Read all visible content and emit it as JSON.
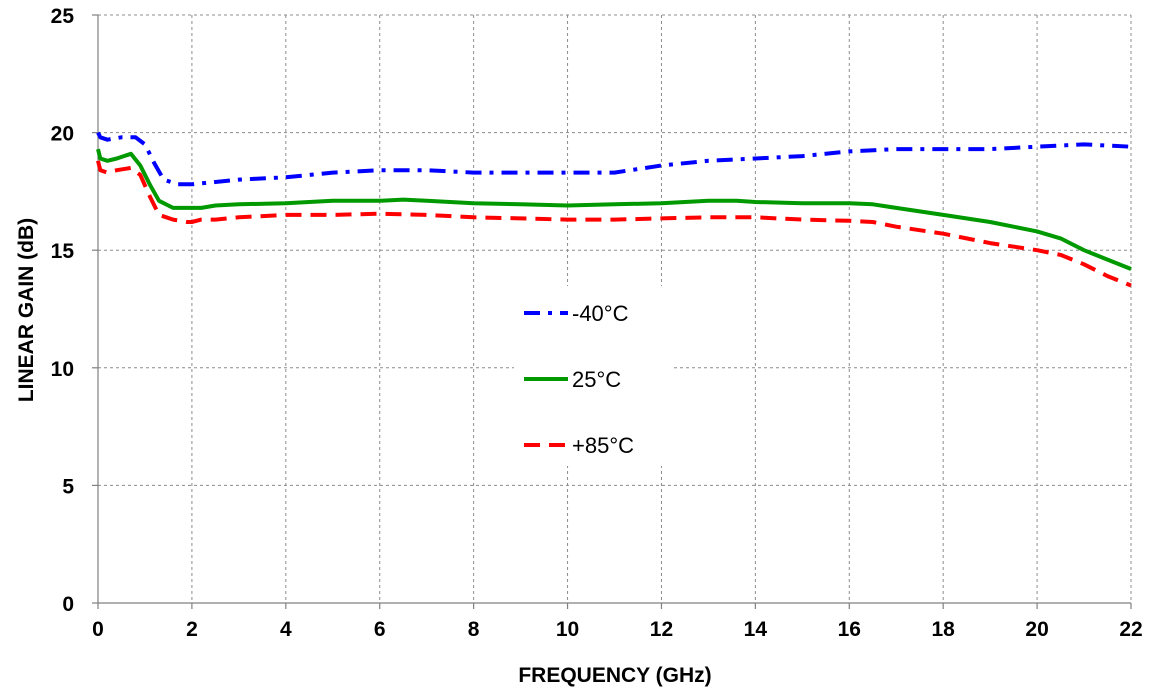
{
  "chart_data": {
    "type": "line",
    "title": "",
    "xlabel": "FREQUENCY (GHz)",
    "ylabel": "LINEAR GAIN (dB)",
    "xlim": [
      0,
      22
    ],
    "ylim": [
      0,
      25
    ],
    "x_ticks": [
      0,
      2,
      4,
      6,
      8,
      10,
      12,
      14,
      16,
      18,
      20,
      22
    ],
    "x_tick_labels": [
      "0",
      "2",
      "4",
      "6",
      "8",
      "10",
      "12",
      "14",
      "16",
      "18",
      "20",
      "22"
    ],
    "y_ticks": [
      0,
      5,
      10,
      15,
      20,
      25
    ],
    "y_tick_labels": [
      "0",
      "5",
      "10",
      "15",
      "20",
      "25"
    ],
    "grid": true,
    "legend_position": "center",
    "series": [
      {
        "name": "-40°C",
        "color": "#0000ff",
        "dash": "dash-dot",
        "points": [
          [
            0.0,
            20.0
          ],
          [
            0.05,
            19.8
          ],
          [
            0.2,
            19.7
          ],
          [
            0.5,
            19.8
          ],
          [
            0.8,
            19.8
          ],
          [
            1.0,
            19.5
          ],
          [
            1.2,
            18.7
          ],
          [
            1.4,
            18.0
          ],
          [
            1.7,
            17.8
          ],
          [
            2.0,
            17.8
          ],
          [
            2.5,
            17.9
          ],
          [
            3.0,
            18.0
          ],
          [
            4.0,
            18.1
          ],
          [
            5.0,
            18.3
          ],
          [
            6.0,
            18.4
          ],
          [
            6.5,
            18.4
          ],
          [
            7.0,
            18.4
          ],
          [
            8.0,
            18.3
          ],
          [
            9.0,
            18.3
          ],
          [
            10.0,
            18.3
          ],
          [
            11.0,
            18.3
          ],
          [
            12.0,
            18.6
          ],
          [
            13.0,
            18.8
          ],
          [
            14.0,
            18.9
          ],
          [
            15.0,
            19.0
          ],
          [
            16.0,
            19.2
          ],
          [
            17.0,
            19.3
          ],
          [
            18.0,
            19.3
          ],
          [
            19.0,
            19.3
          ],
          [
            20.0,
            19.4
          ],
          [
            21.0,
            19.5
          ],
          [
            22.0,
            19.4
          ]
        ]
      },
      {
        "name": "25°C",
        "color": "#009900",
        "dash": "solid",
        "points": [
          [
            0.0,
            19.3
          ],
          [
            0.05,
            18.9
          ],
          [
            0.2,
            18.8
          ],
          [
            0.4,
            18.9
          ],
          [
            0.7,
            19.1
          ],
          [
            0.9,
            18.6
          ],
          [
            1.1,
            17.8
          ],
          [
            1.3,
            17.1
          ],
          [
            1.6,
            16.8
          ],
          [
            1.9,
            16.8
          ],
          [
            2.0,
            16.8
          ],
          [
            2.2,
            16.8
          ],
          [
            2.5,
            16.9
          ],
          [
            3.0,
            16.95
          ],
          [
            4.0,
            17.0
          ],
          [
            5.0,
            17.1
          ],
          [
            6.0,
            17.1
          ],
          [
            6.5,
            17.15
          ],
          [
            7.0,
            17.1
          ],
          [
            8.0,
            17.0
          ],
          [
            9.0,
            16.95
          ],
          [
            10.0,
            16.9
          ],
          [
            11.0,
            16.95
          ],
          [
            12.0,
            17.0
          ],
          [
            13.0,
            17.1
          ],
          [
            13.6,
            17.1
          ],
          [
            14.0,
            17.05
          ],
          [
            15.0,
            17.0
          ],
          [
            16.0,
            17.0
          ],
          [
            16.5,
            16.95
          ],
          [
            17.0,
            16.8
          ],
          [
            18.0,
            16.5
          ],
          [
            19.0,
            16.2
          ],
          [
            20.0,
            15.8
          ],
          [
            20.5,
            15.5
          ],
          [
            21.0,
            15.0
          ],
          [
            21.5,
            14.6
          ],
          [
            22.0,
            14.2
          ]
        ]
      },
      {
        "name": "+85°C",
        "color": "#ff0000",
        "dash": "dash",
        "points": [
          [
            0.0,
            18.8
          ],
          [
            0.05,
            18.4
          ],
          [
            0.2,
            18.3
          ],
          [
            0.4,
            18.4
          ],
          [
            0.7,
            18.5
          ],
          [
            0.9,
            18.2
          ],
          [
            1.1,
            17.3
          ],
          [
            1.3,
            16.5
          ],
          [
            1.6,
            16.3
          ],
          [
            1.9,
            16.2
          ],
          [
            2.0,
            16.2
          ],
          [
            2.2,
            16.3
          ],
          [
            2.5,
            16.3
          ],
          [
            3.0,
            16.4
          ],
          [
            4.0,
            16.5
          ],
          [
            5.0,
            16.5
          ],
          [
            6.0,
            16.55
          ],
          [
            7.0,
            16.5
          ],
          [
            8.0,
            16.4
          ],
          [
            9.0,
            16.35
          ],
          [
            10.0,
            16.3
          ],
          [
            11.0,
            16.3
          ],
          [
            12.0,
            16.35
          ],
          [
            13.0,
            16.4
          ],
          [
            14.0,
            16.4
          ],
          [
            15.0,
            16.3
          ],
          [
            16.0,
            16.25
          ],
          [
            16.5,
            16.2
          ],
          [
            17.0,
            16.0
          ],
          [
            18.0,
            15.7
          ],
          [
            19.0,
            15.3
          ],
          [
            20.0,
            15.0
          ],
          [
            20.5,
            14.8
          ],
          [
            21.0,
            14.4
          ],
          [
            21.5,
            13.9
          ],
          [
            22.0,
            13.5
          ]
        ]
      }
    ]
  }
}
